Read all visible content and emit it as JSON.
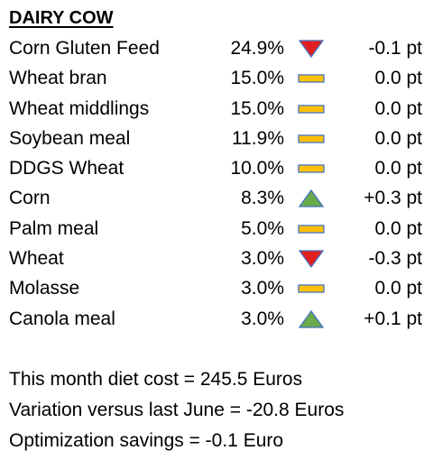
{
  "title": "DAIRY COW",
  "colors": {
    "down": "#e02020",
    "up": "#6aaa4a",
    "flat": "#ffc000",
    "outline": "#4472c4"
  },
  "rows": [
    {
      "name": "Corn Gluten Feed",
      "share": "24.9%",
      "trend": "down-triangle-icon",
      "change": "-0.1 pt"
    },
    {
      "name": "Wheat bran",
      "share": "15.0%",
      "trend": "flat-bar-icon",
      "change": "0.0 pt"
    },
    {
      "name": "Wheat middlings",
      "share": "15.0%",
      "trend": "flat-bar-icon",
      "change": "0.0 pt"
    },
    {
      "name": "Soybean meal",
      "share": "11.9%",
      "trend": "flat-bar-icon",
      "change": "0.0 pt"
    },
    {
      "name": "DDGS Wheat",
      "share": "10.0%",
      "trend": "flat-bar-icon",
      "change": "0.0 pt"
    },
    {
      "name": "Corn",
      "share": "8.3%",
      "trend": "up-triangle-icon",
      "change": "+0.3 pt"
    },
    {
      "name": "Palm meal",
      "share": "5.0%",
      "trend": "flat-bar-icon",
      "change": "0.0 pt"
    },
    {
      "name": "Wheat",
      "share": "3.0%",
      "trend": "down-triangle-icon",
      "change": "-0.3 pt"
    },
    {
      "name": "Molasse",
      "share": "3.0%",
      "trend": "flat-bar-icon",
      "change": "0.0 pt"
    },
    {
      "name": "Canola meal",
      "share": "3.0%",
      "trend": "up-triangle-icon",
      "change": "+0.1 pt"
    }
  ],
  "summary": {
    "diet_cost": "This month diet cost = 245.5 Euros",
    "variation": "Variation versus last June = -20.8 Euros",
    "savings": "Optimization savings = -0.1 Euro"
  }
}
